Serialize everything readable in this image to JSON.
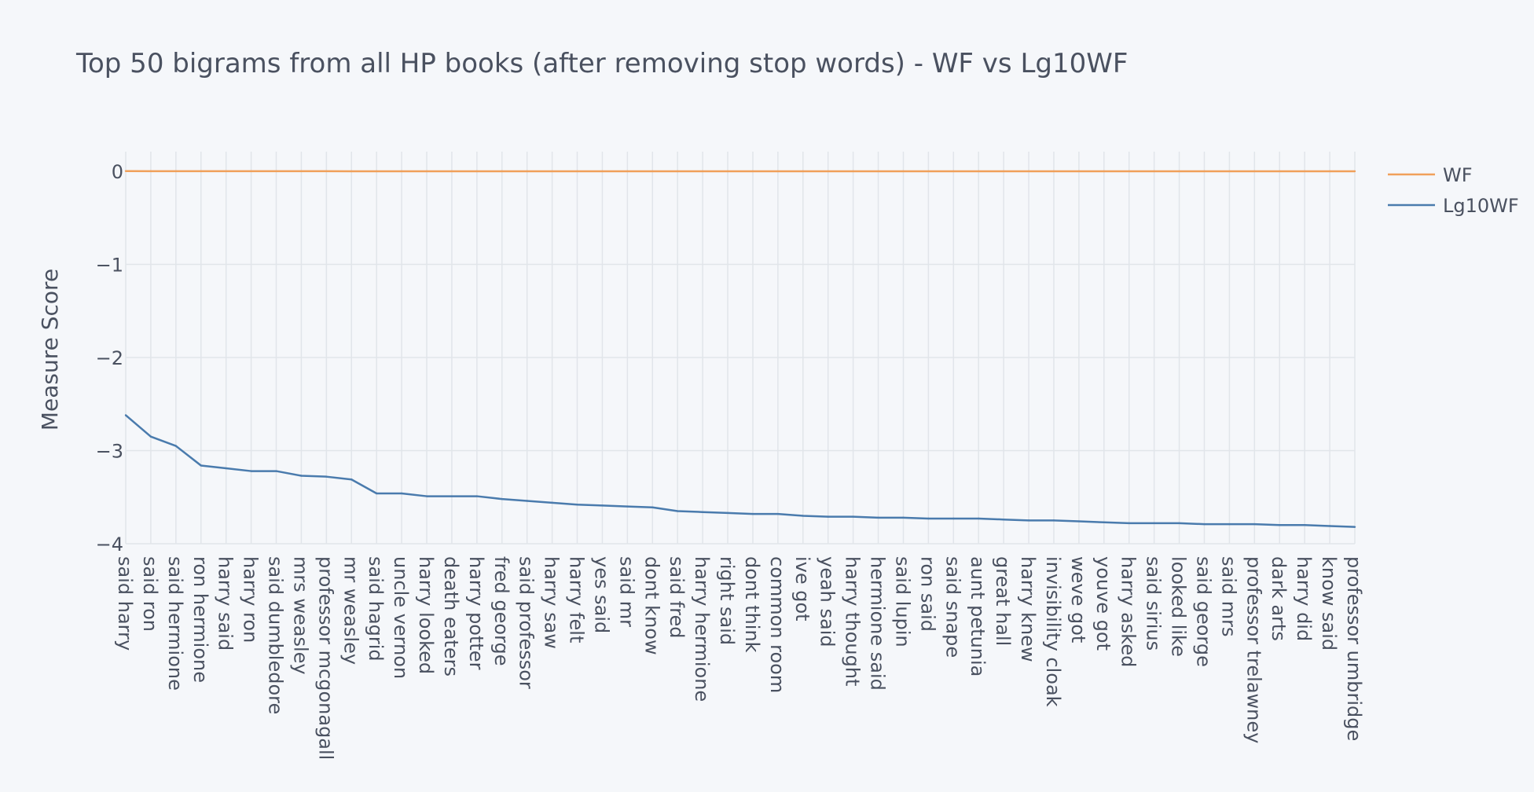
{
  "chart_data": {
    "type": "line",
    "title": "Top 50 bigrams from all HP books (after removing stop words) - WF vs Lg10WF",
    "xlabel": "",
    "ylabel": "Measure Score",
    "ylim": [
      -4,
      0
    ],
    "yticks": [
      0,
      -1,
      -2,
      -3,
      -4
    ],
    "ytick_labels": [
      "0",
      "−1",
      "−2",
      "−3",
      "−4"
    ],
    "grid": true,
    "legend_position": "top-right",
    "categories": [
      "said harry",
      "said ron",
      "said hermione",
      "ron hermione",
      "harry said",
      "harry ron",
      "said dumbledore",
      "mrs weasley",
      "professor mcgonagall",
      "mr weasley",
      "said hagrid",
      "uncle vernon",
      "harry looked",
      "death eaters",
      "harry potter",
      "fred george",
      "said professor",
      "harry saw",
      "harry felt",
      "yes said",
      "said mr",
      "dont know",
      "said fred",
      "harry hermione",
      "right said",
      "dont think",
      "common room",
      "ive got",
      "yeah said",
      "harry thought",
      "hermione said",
      "said lupin",
      "ron said",
      "said snape",
      "aunt petunia",
      "great hall",
      "harry knew",
      "invisibility cloak",
      "weve got",
      "youve got",
      "harry asked",
      "said sirius",
      "looked like",
      "said george",
      "said mrs",
      "professor trelawney",
      "dark arts",
      "harry did",
      "know said",
      "professor umbridge"
    ],
    "series": [
      {
        "name": "WF",
        "color": "#f0a05a",
        "values": [
          0.0024,
          0.0014,
          0.0011,
          0.0007,
          0.00065,
          0.0006,
          0.0006,
          0.00054,
          0.00053,
          0.0005,
          0.00035,
          0.00035,
          0.00032,
          0.00032,
          0.00032,
          0.0003,
          0.00029,
          0.00028,
          0.00026,
          0.00026,
          0.00025,
          0.00025,
          0.00023,
          0.00022,
          0.00022,
          0.00021,
          0.00021,
          0.0002,
          0.0002,
          0.0002,
          0.0002,
          0.00019,
          0.00019,
          0.00019,
          0.00019,
          0.00018,
          0.00018,
          0.00018,
          0.00017,
          0.00017,
          0.00017,
          0.00017,
          0.00017,
          0.00016,
          0.00016,
          0.00016,
          0.00016,
          0.00016,
          0.00015,
          0.00015
        ]
      },
      {
        "name": "Lg10WF",
        "color": "#4a7bad",
        "values": [
          -2.62,
          -2.85,
          -2.95,
          -3.16,
          -3.19,
          -3.22,
          -3.22,
          -3.27,
          -3.28,
          -3.31,
          -3.46,
          -3.46,
          -3.49,
          -3.49,
          -3.49,
          -3.52,
          -3.54,
          -3.56,
          -3.58,
          -3.59,
          -3.6,
          -3.61,
          -3.65,
          -3.66,
          -3.67,
          -3.68,
          -3.68,
          -3.7,
          -3.71,
          -3.71,
          -3.72,
          -3.72,
          -3.73,
          -3.73,
          -3.73,
          -3.74,
          -3.75,
          -3.75,
          -3.76,
          -3.77,
          -3.78,
          -3.78,
          -3.78,
          -3.79,
          -3.79,
          -3.79,
          -3.8,
          -3.8,
          -3.81,
          -3.82
        ]
      }
    ]
  },
  "colors": {
    "background": "#f5f7fa",
    "grid": "#e1e5ea",
    "text": "#4a5160"
  }
}
